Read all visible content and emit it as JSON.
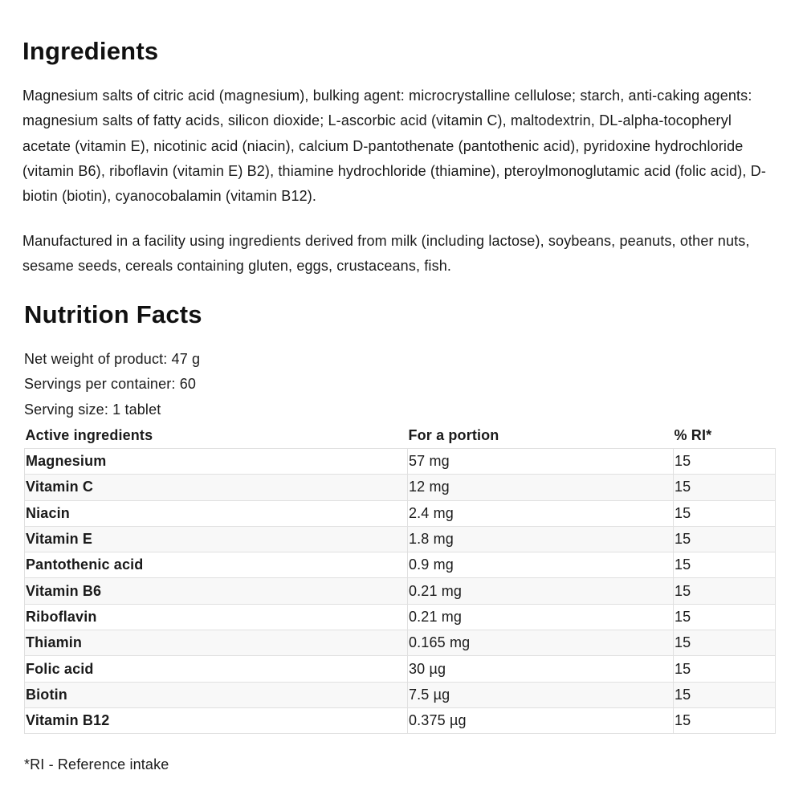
{
  "ingredients": {
    "title": "Ingredients",
    "text": "Magnesium salts of citric acid (magnesium), bulking agent: microcrystalline cellulose; starch, anti-caking agents: magnesium salts of fatty acids, silicon dioxide; L-ascorbic acid (vitamin C), maltodextrin, DL-alpha-tocopheryl acetate (vitamin E), nicotinic acid (niacin), calcium D-pantothenate (pantothenic acid), pyridoxine hydrochloride (vitamin B6), riboflavin (vitamin E) B2), thiamine hydrochloride (thiamine), pteroylmonoglutamic acid (folic acid), D-biotin (biotin), cyanocobalamin (vitamin B12).",
    "facility": "Manufactured in a facility using ingredients derived from milk (including lactose), soybeans, peanuts, other nuts, sesame seeds, cereals containing gluten, eggs, crustaceans, fish."
  },
  "nutrition": {
    "title": "Nutrition Facts",
    "net_weight": "Net weight of product: 47 g",
    "servings": "Servings per container: 60",
    "serving_size": "Serving size: 1 tablet",
    "headers": [
      "Active ingredients",
      "For a portion",
      "% RI*"
    ],
    "rows": [
      [
        "Magnesium",
        "57 mg",
        "15"
      ],
      [
        "Vitamin C",
        "12 mg",
        "15"
      ],
      [
        "Niacin",
        "2.4 mg",
        "15"
      ],
      [
        "Vitamin E",
        "1.8 mg",
        "15"
      ],
      [
        "Pantothenic acid",
        "0.9 mg",
        "15"
      ],
      [
        "Vitamin B6",
        "0.21 mg",
        "15"
      ],
      [
        "Riboflavin",
        "0.21 mg",
        "15"
      ],
      [
        "Thiamin",
        "0.165 mg",
        "15"
      ],
      [
        "Folic acid",
        "30 µg",
        "15"
      ],
      [
        "Biotin",
        "7.5 µg",
        "15"
      ],
      [
        "Vitamin B12",
        "0.375 µg",
        "15"
      ]
    ],
    "footnote": "*RI - Reference intake"
  }
}
